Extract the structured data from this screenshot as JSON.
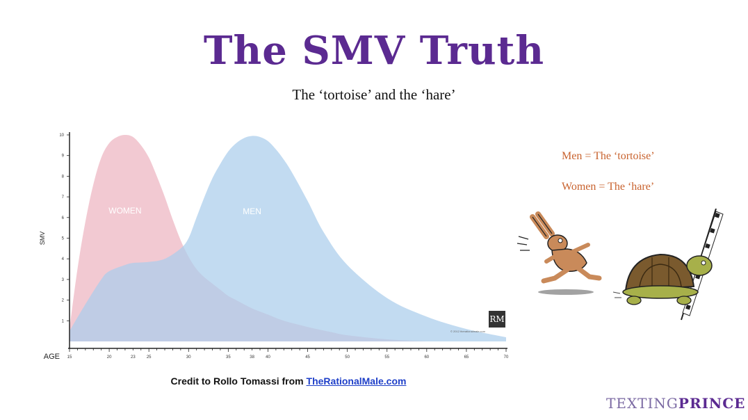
{
  "header": {
    "title": "The SMV Truth",
    "subtitle": "The ‘tortoise’ and the ‘hare’"
  },
  "notes": {
    "men": "Men = The ‘tortoise’",
    "women": "Women = The ‘hare’"
  },
  "credit": {
    "prefix": "Credit to Rollo Tomassi from ",
    "link_text": "TheRationalMale.com"
  },
  "logo": {
    "mark": "RM",
    "caption": "© 2012 therationalmale.com"
  },
  "brand": {
    "part1": "TEXTING",
    "part2": "PRINCE"
  },
  "colors": {
    "title": "#5b2a91",
    "women_fill": "#f1c6d0",
    "men_fill": "#aacdec",
    "note": "#c8622e",
    "link": "#1e3fc8"
  },
  "chart_data": {
    "type": "area",
    "ylabel": "SMV",
    "xlabel": "AGE",
    "xlim": [
      15,
      70
    ],
    "ylim": [
      0,
      10
    ],
    "x_ticks": [
      15,
      20,
      23,
      25,
      30,
      35,
      38,
      40,
      45,
      50,
      55,
      60,
      65,
      70
    ],
    "y_ticks": [
      1,
      2,
      3,
      4,
      5,
      6,
      7,
      8,
      9,
      10
    ],
    "series": [
      {
        "name": "WOMEN",
        "x": [
          15,
          16,
          17,
          18,
          19,
          20,
          21,
          22,
          23,
          24,
          25,
          26,
          27,
          28,
          29,
          30,
          31,
          32,
          33,
          34,
          35,
          36,
          38,
          40,
          42,
          45,
          48,
          50,
          55,
          60
        ],
        "y": [
          0.6,
          3.5,
          5.8,
          7.6,
          8.9,
          9.6,
          9.9,
          10.0,
          9.9,
          9.5,
          8.9,
          8.0,
          7.0,
          5.9,
          4.9,
          4.1,
          3.5,
          3.1,
          2.8,
          2.5,
          2.2,
          2.0,
          1.6,
          1.3,
          1.0,
          0.7,
          0.45,
          0.3,
          0.1,
          0.0
        ]
      },
      {
        "name": "MEN",
        "x": [
          15,
          17,
          19,
          20,
          22,
          23,
          25,
          27,
          29,
          30,
          31,
          32,
          33,
          34,
          35,
          36,
          37,
          38,
          39,
          40,
          41,
          42,
          43,
          45,
          47,
          50,
          55,
          60,
          65,
          70
        ],
        "y": [
          0.5,
          1.8,
          3.0,
          3.4,
          3.7,
          3.8,
          3.85,
          4.0,
          4.5,
          5.0,
          6.0,
          7.0,
          7.9,
          8.6,
          9.2,
          9.6,
          9.85,
          9.95,
          9.9,
          9.7,
          9.3,
          8.8,
          8.2,
          6.8,
          5.3,
          3.7,
          2.1,
          1.2,
          0.6,
          0.2
        ]
      }
    ]
  }
}
